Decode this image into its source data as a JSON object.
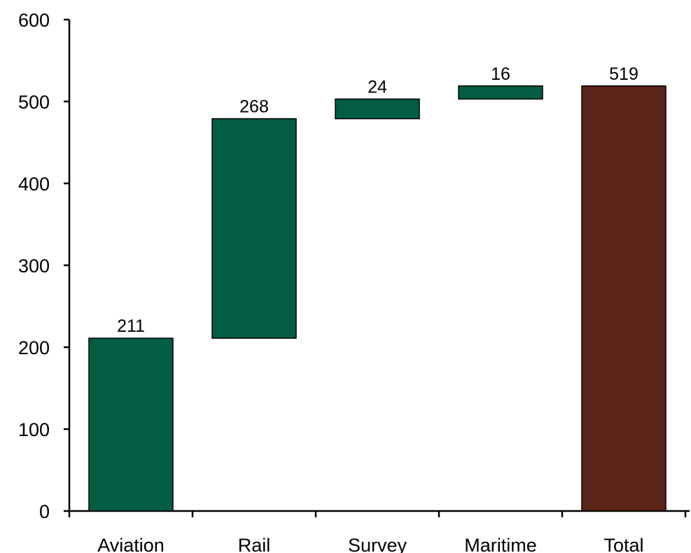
{
  "chart_data": {
    "type": "bar",
    "subtype": "waterfall",
    "title": "",
    "xlabel": "",
    "ylabel": "",
    "ylim": [
      0,
      600
    ],
    "yticks": [
      0,
      100,
      200,
      300,
      400,
      500,
      600
    ],
    "grid": false,
    "legend": "none",
    "categories": [
      "Aviation",
      "Rail",
      "Survey",
      "Maritime",
      "Total"
    ],
    "values": [
      211,
      268,
      24,
      16,
      519
    ],
    "bar_types": [
      "increment",
      "increment",
      "increment",
      "increment",
      "total"
    ],
    "data_labels": [
      "211",
      "268",
      "24",
      "16",
      "519"
    ],
    "colors": {
      "increment": "#035C44",
      "total": "#5A2418",
      "outline": "#000000"
    }
  }
}
